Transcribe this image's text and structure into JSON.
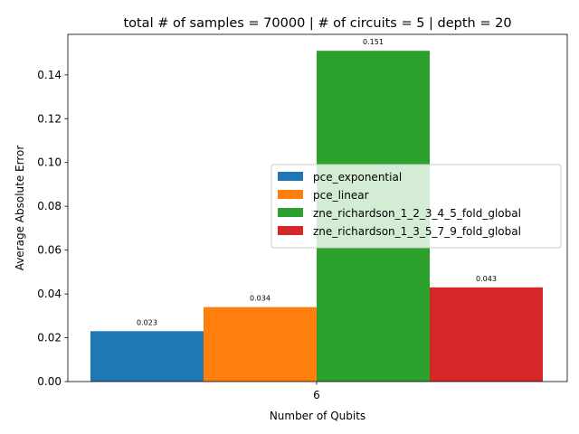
{
  "chart_data": {
    "type": "bar",
    "title": "total # of samples = 70000 | # of circuits = 5 | depth = 20",
    "xlabel": "Number of Qubits",
    "ylabel": "Average Absolute Error",
    "categories": [
      "6"
    ],
    "ylim": [
      0,
      0.1585
    ],
    "yticks": [
      "0.00",
      "0.02",
      "0.04",
      "0.06",
      "0.08",
      "0.10",
      "0.12",
      "0.14"
    ],
    "grid": false,
    "legend_position": "center-right",
    "series": [
      {
        "name": "pce_exponential",
        "values": [
          0.023
        ],
        "label": "0.023",
        "color": "#1f77b4"
      },
      {
        "name": "pce_linear",
        "values": [
          0.034
        ],
        "label": "0.034",
        "color": "#ff7f0e"
      },
      {
        "name": "zne_richardson_1_2_3_4_5_fold_global",
        "values": [
          0.151
        ],
        "label": "0.151",
        "color": "#2ca02c"
      },
      {
        "name": "zne_richardson_1_3_5_7_9_fold_global",
        "values": [
          0.043
        ],
        "label": "0.043",
        "color": "#d62728"
      }
    ]
  }
}
